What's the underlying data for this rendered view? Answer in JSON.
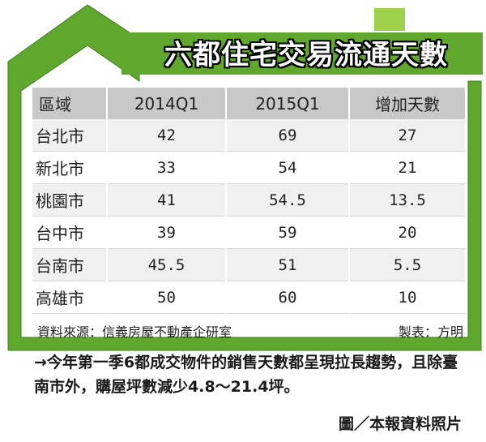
{
  "title": "六都住宅交易流通天數",
  "colors": {
    "green": "#5fa72d",
    "light_green": "#9fd24a",
    "header_gray": "#c8c8c8"
  },
  "table": {
    "headers": [
      "區域",
      "2014Q1",
      "2015Q1",
      "增加天數"
    ],
    "rows": [
      {
        "city": "台北市",
        "q2014": "42",
        "q2015": "69",
        "diff": "27"
      },
      {
        "city": "新北市",
        "q2014": "33",
        "q2015": "54",
        "diff": "21"
      },
      {
        "city": "桃園市",
        "q2014": "41",
        "q2015": "54.5",
        "diff": "13.5"
      },
      {
        "city": "台中市",
        "q2014": "39",
        "q2015": "59",
        "diff": "20"
      },
      {
        "city": "台南市",
        "q2014": "45.5",
        "q2015": "51",
        "diff": "5.5"
      },
      {
        "city": "高雄市",
        "q2014": "50",
        "q2015": "60",
        "diff": "10"
      }
    ]
  },
  "source": "資料來源：信義房屋不動產企研室",
  "producer": "製表：方明",
  "note": "→今年第一季6都成交物件的銷售天數都呈現拉長趨勢，且除臺南市外，購屋坪數減少4.8～21.4坪。",
  "credit": "圖／本報資料照片"
}
